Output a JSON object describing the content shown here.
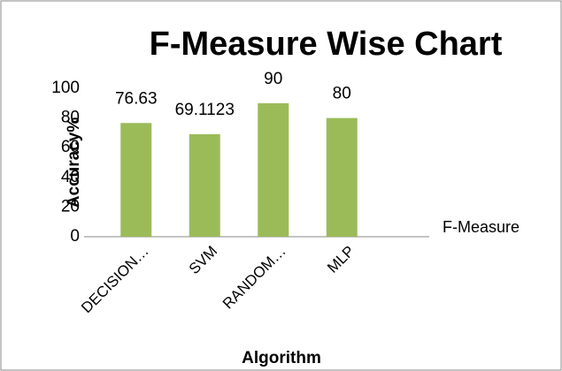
{
  "chart_data": {
    "type": "bar",
    "title": "F-Measure Wise Chart",
    "x_label": "Algorithm",
    "y_label": "Accuracy%",
    "categories": [
      "DECISION…",
      "SVM",
      "RANDOM…",
      "MLP"
    ],
    "series": [
      {
        "name": "F-Measure",
        "color": "#9bbb59",
        "values": [
          76.63,
          69.1123,
          90,
          80
        ]
      }
    ],
    "ylim": [
      0,
      100
    ],
    "yticks": [
      0,
      20,
      40,
      60,
      80,
      100
    ],
    "grid": false,
    "legend": "right"
  }
}
